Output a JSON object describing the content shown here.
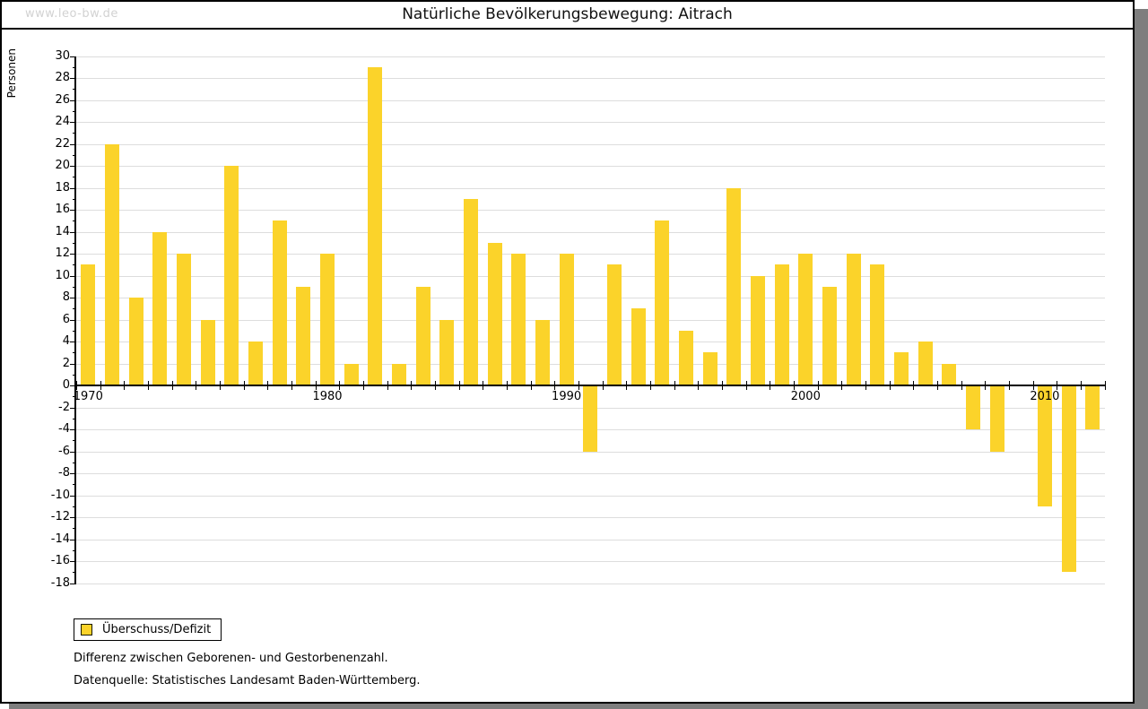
{
  "window": {
    "watermark": "www.leo-bw.de",
    "title": "Natürliche Bevölkerungsbewegung: Aitrach"
  },
  "chart_data": {
    "type": "bar",
    "title": "Natürliche Bevölkerungsbewegung: Aitrach",
    "ylabel": "Personen",
    "categories": [
      1970,
      1971,
      1972,
      1973,
      1974,
      1975,
      1976,
      1977,
      1978,
      1979,
      1980,
      1981,
      1982,
      1983,
      1984,
      1985,
      1986,
      1987,
      1988,
      1989,
      1990,
      1991,
      1992,
      1993,
      1994,
      1995,
      1996,
      1997,
      1998,
      1999,
      2000,
      2001,
      2002,
      2003,
      2004,
      2005,
      2006,
      2007,
      2008,
      2009,
      2010,
      2011,
      2012
    ],
    "series": [
      {
        "name": "Überschuss/Defizit",
        "values": [
          11,
          22,
          8,
          14,
          12,
          6,
          20,
          4,
          15,
          9,
          12,
          2,
          29,
          2,
          9,
          6,
          17,
          13,
          12,
          6,
          12,
          -6,
          11,
          7,
          15,
          5,
          3,
          18,
          10,
          11,
          12,
          9,
          12,
          11,
          3,
          4,
          2,
          -4,
          -6,
          0,
          -11,
          -17,
          -4
        ]
      }
    ],
    "ylim": [
      -18,
      30
    ],
    "y_tick_step": 2,
    "y_minor_tick_step": 1,
    "x_labeled_ticks": [
      "1970",
      "1980",
      "1990",
      "2000",
      "2010"
    ],
    "grid": true,
    "legend_position": "below-left",
    "colors": {
      "bar": "#fbd32a",
      "grid": "#dddddd",
      "axis": "#000000",
      "watermark": "#d2d2d2",
      "frame_shadow": "#7e7e7e"
    }
  },
  "legend": {
    "label": "Überschuss/Defizit"
  },
  "notes": {
    "line1": "Differenz zwischen Geborenen- und Gestorbenenzahl.",
    "line2": "Datenquelle: Statistisches Landesamt Baden-Württemberg."
  }
}
